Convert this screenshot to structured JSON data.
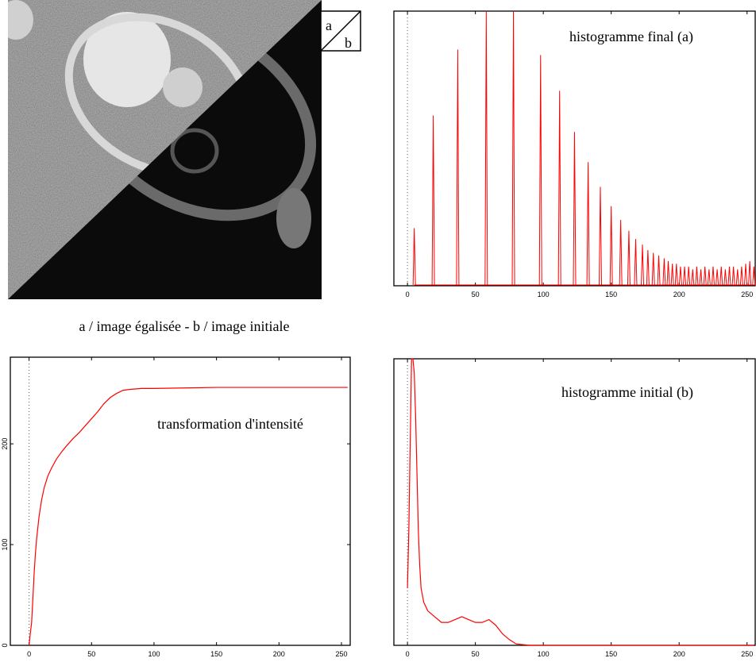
{
  "figure": {
    "caption": "a / image égalisée - b / image initiale",
    "inset": [
      "a",
      "b"
    ]
  },
  "chart_data": [
    {
      "type": "spike",
      "annotation": "histogramme final (a)",
      "color": "#ff0000",
      "x": [
        5,
        19,
        37,
        58,
        78,
        98,
        112,
        123,
        133,
        142,
        150,
        157,
        163,
        168,
        173,
        177,
        181,
        185,
        189,
        192,
        195,
        198,
        201,
        204,
        207,
        210,
        213,
        216,
        219,
        222,
        225,
        228,
        231,
        234,
        237,
        240,
        243,
        246,
        249,
        252,
        255
      ],
      "values": [
        21,
        62,
        86,
        100,
        100,
        84,
        71,
        56,
        45,
        36,
        29,
        24,
        20,
        17,
        15,
        13,
        12,
        11,
        10,
        9,
        8,
        8,
        7,
        7,
        7,
        6,
        7,
        6,
        7,
        6,
        7,
        6,
        7,
        6,
        7,
        7,
        6,
        7,
        8,
        9,
        7
      ],
      "xlim": [
        -10,
        256
      ],
      "ylim": [
        0,
        100
      ],
      "xticks": [
        0,
        50,
        100,
        150,
        200,
        250
      ]
    },
    {
      "type": "line",
      "annotation": "transformation d'intensité",
      "color": "#ff0000",
      "x": [
        0,
        1,
        2,
        3,
        4,
        5,
        6,
        8,
        10,
        12,
        15,
        18,
        22,
        26,
        30,
        35,
        40,
        45,
        50,
        55,
        60,
        65,
        70,
        75,
        80,
        90,
        100,
        150,
        200,
        255
      ],
      "values": [
        0,
        12,
        22,
        45,
        70,
        90,
        105,
        128,
        144,
        156,
        168,
        176,
        185,
        192,
        198,
        205,
        211,
        218,
        225,
        232,
        240,
        246,
        250,
        253,
        254,
        255,
        255,
        256,
        256,
        256
      ],
      "xlim": [
        -15,
        257
      ],
      "ylim": [
        0,
        286
      ],
      "xticks": [
        0,
        50,
        100,
        150,
        200,
        250
      ],
      "yticks": [
        0,
        100,
        200
      ]
    },
    {
      "type": "line",
      "annotation": "histogramme initial (b)",
      "color": "#ff0000",
      "x": [
        0,
        1,
        2,
        3,
        4,
        5,
        6,
        7,
        8,
        9,
        10,
        12,
        15,
        20,
        25,
        30,
        35,
        40,
        45,
        50,
        55,
        60,
        65,
        70,
        75,
        80,
        90,
        100,
        150,
        200,
        255
      ],
      "values": [
        20,
        40,
        70,
        100,
        100,
        95,
        80,
        60,
        40,
        28,
        20,
        15,
        12,
        10,
        8,
        8,
        9,
        10,
        9,
        8,
        8,
        9,
        7,
        4,
        2,
        0.5,
        0,
        0,
        0,
        0,
        0
      ],
      "xlim": [
        -10,
        256
      ],
      "ylim": [
        0,
        100
      ],
      "xticks": [
        0,
        50,
        100,
        150,
        200,
        250
      ]
    }
  ]
}
